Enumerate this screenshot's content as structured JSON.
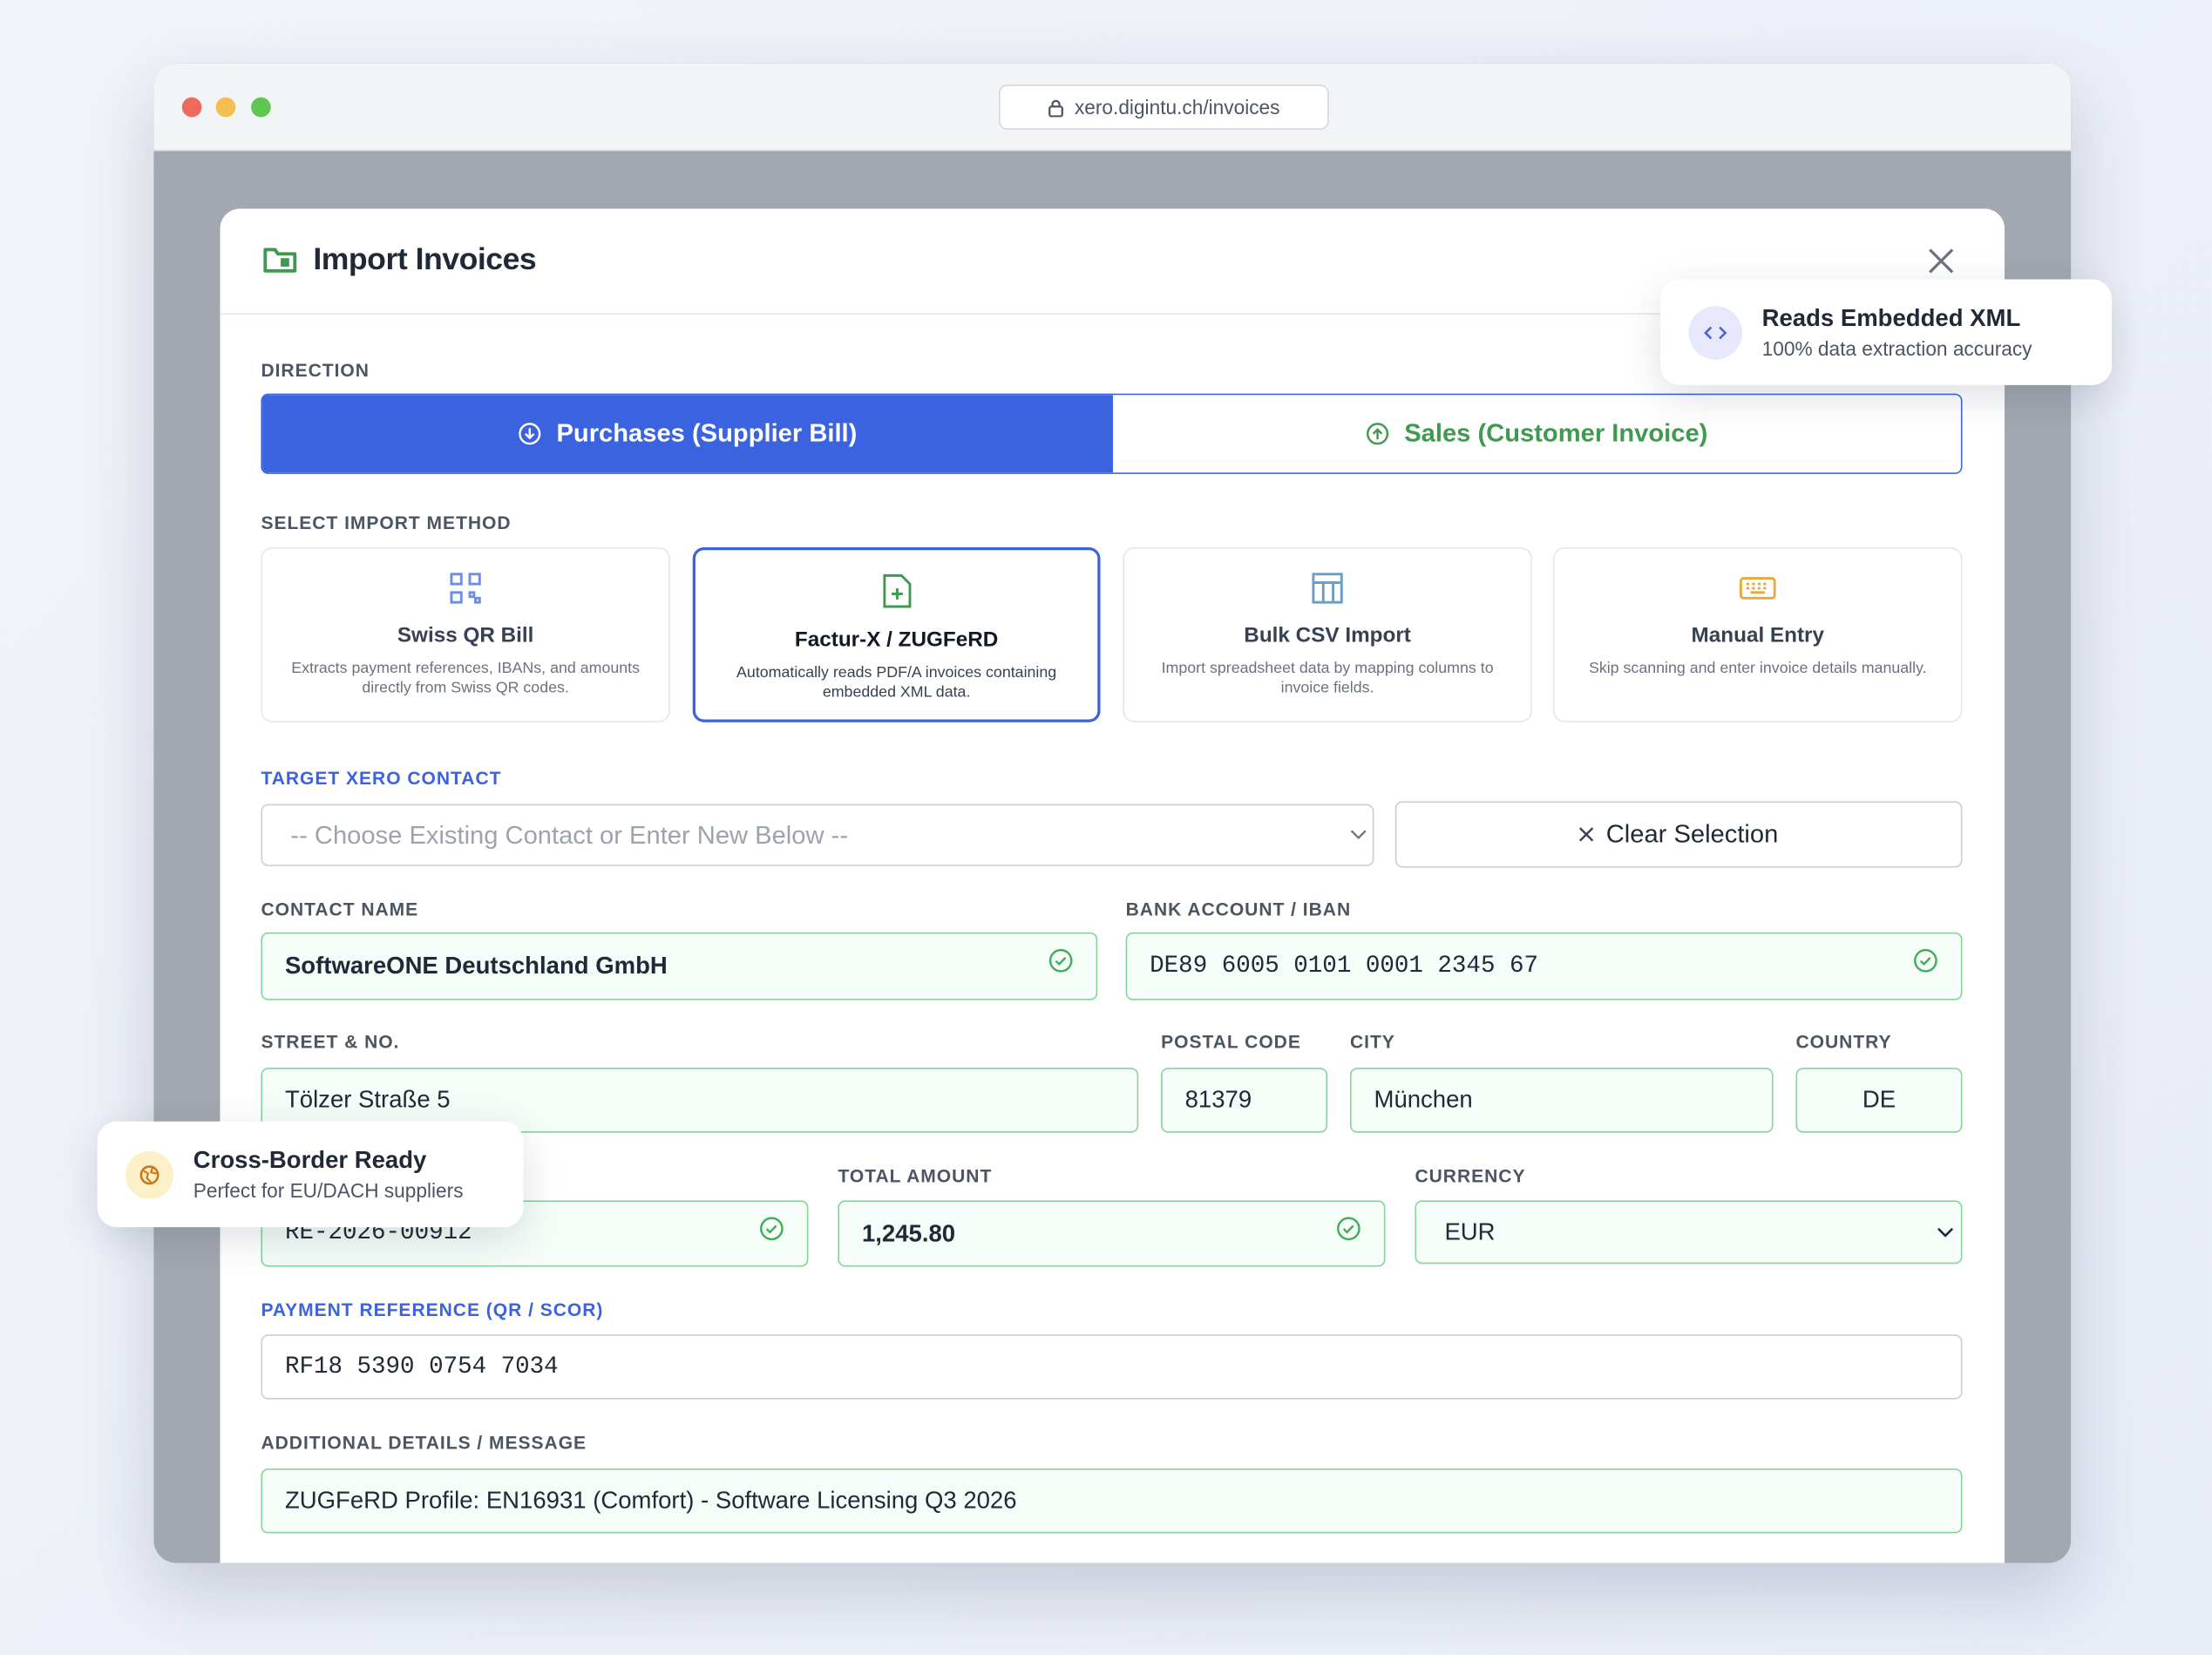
{
  "browser": {
    "url": "xero.digintu.ch/invoices"
  },
  "modal": {
    "title": "Import Invoices"
  },
  "direction": {
    "label": "DIRECTION",
    "options": [
      "Purchases (Supplier Bill)",
      "Sales (Customer Invoice)"
    ]
  },
  "import_method": {
    "label": "SELECT IMPORT METHOD",
    "methods": [
      {
        "title": "Swiss QR Bill",
        "description": "Extracts payment references, IBANs, and amounts directly from Swiss QR codes."
      },
      {
        "title": "Factur-X / ZUGFeRD",
        "description": "Automatically reads PDF/A invoices containing embedded XML data."
      },
      {
        "title": "Bulk CSV Import",
        "description": "Import spreadsheet data by mapping columns to invoice fields."
      },
      {
        "title": "Manual Entry",
        "description": "Skip scanning and enter invoice details manually."
      }
    ]
  },
  "contact": {
    "label": "TARGET XERO CONTACT",
    "placeholder": "-- Choose Existing Contact or Enter New Below --",
    "clear": "Clear Selection"
  },
  "fields": {
    "contact_name": {
      "label": "CONTACT NAME",
      "value": "SoftwareONE Deutschland GmbH"
    },
    "iban": {
      "label": "BANK ACCOUNT / IBAN",
      "value": "DE89 6005 0101 0001 2345 67"
    },
    "street": {
      "label": "STREET & NO.",
      "value": "Tölzer Straße 5"
    },
    "postal_code": {
      "label": "POSTAL CODE",
      "value": "81379"
    },
    "city": {
      "label": "CITY",
      "value": "München"
    },
    "country": {
      "label": "COUNTRY",
      "value": "DE"
    },
    "invoice_number": {
      "value": "RE-2026-00912"
    },
    "total_amount": {
      "label": "TOTAL AMOUNT",
      "value": "1,245.80"
    },
    "currency": {
      "label": "CURRENCY",
      "value": "EUR"
    },
    "payment_reference": {
      "label": "PAYMENT REFERENCE (QR / SCOR)",
      "value": "RF18 5390 0754 7034"
    },
    "additional": {
      "label": "ADDITIONAL DETAILS / MESSAGE",
      "value": "ZUGFeRD Profile: EN16931 (Comfort) - Software Licensing Q3 2026"
    }
  },
  "badges": [
    {
      "title": "Reads Embedded XML",
      "subtitle": "100% data extraction accuracy"
    },
    {
      "title": "Cross-Border Ready",
      "subtitle": "Perfect for EU/DACH suppliers"
    }
  ]
}
